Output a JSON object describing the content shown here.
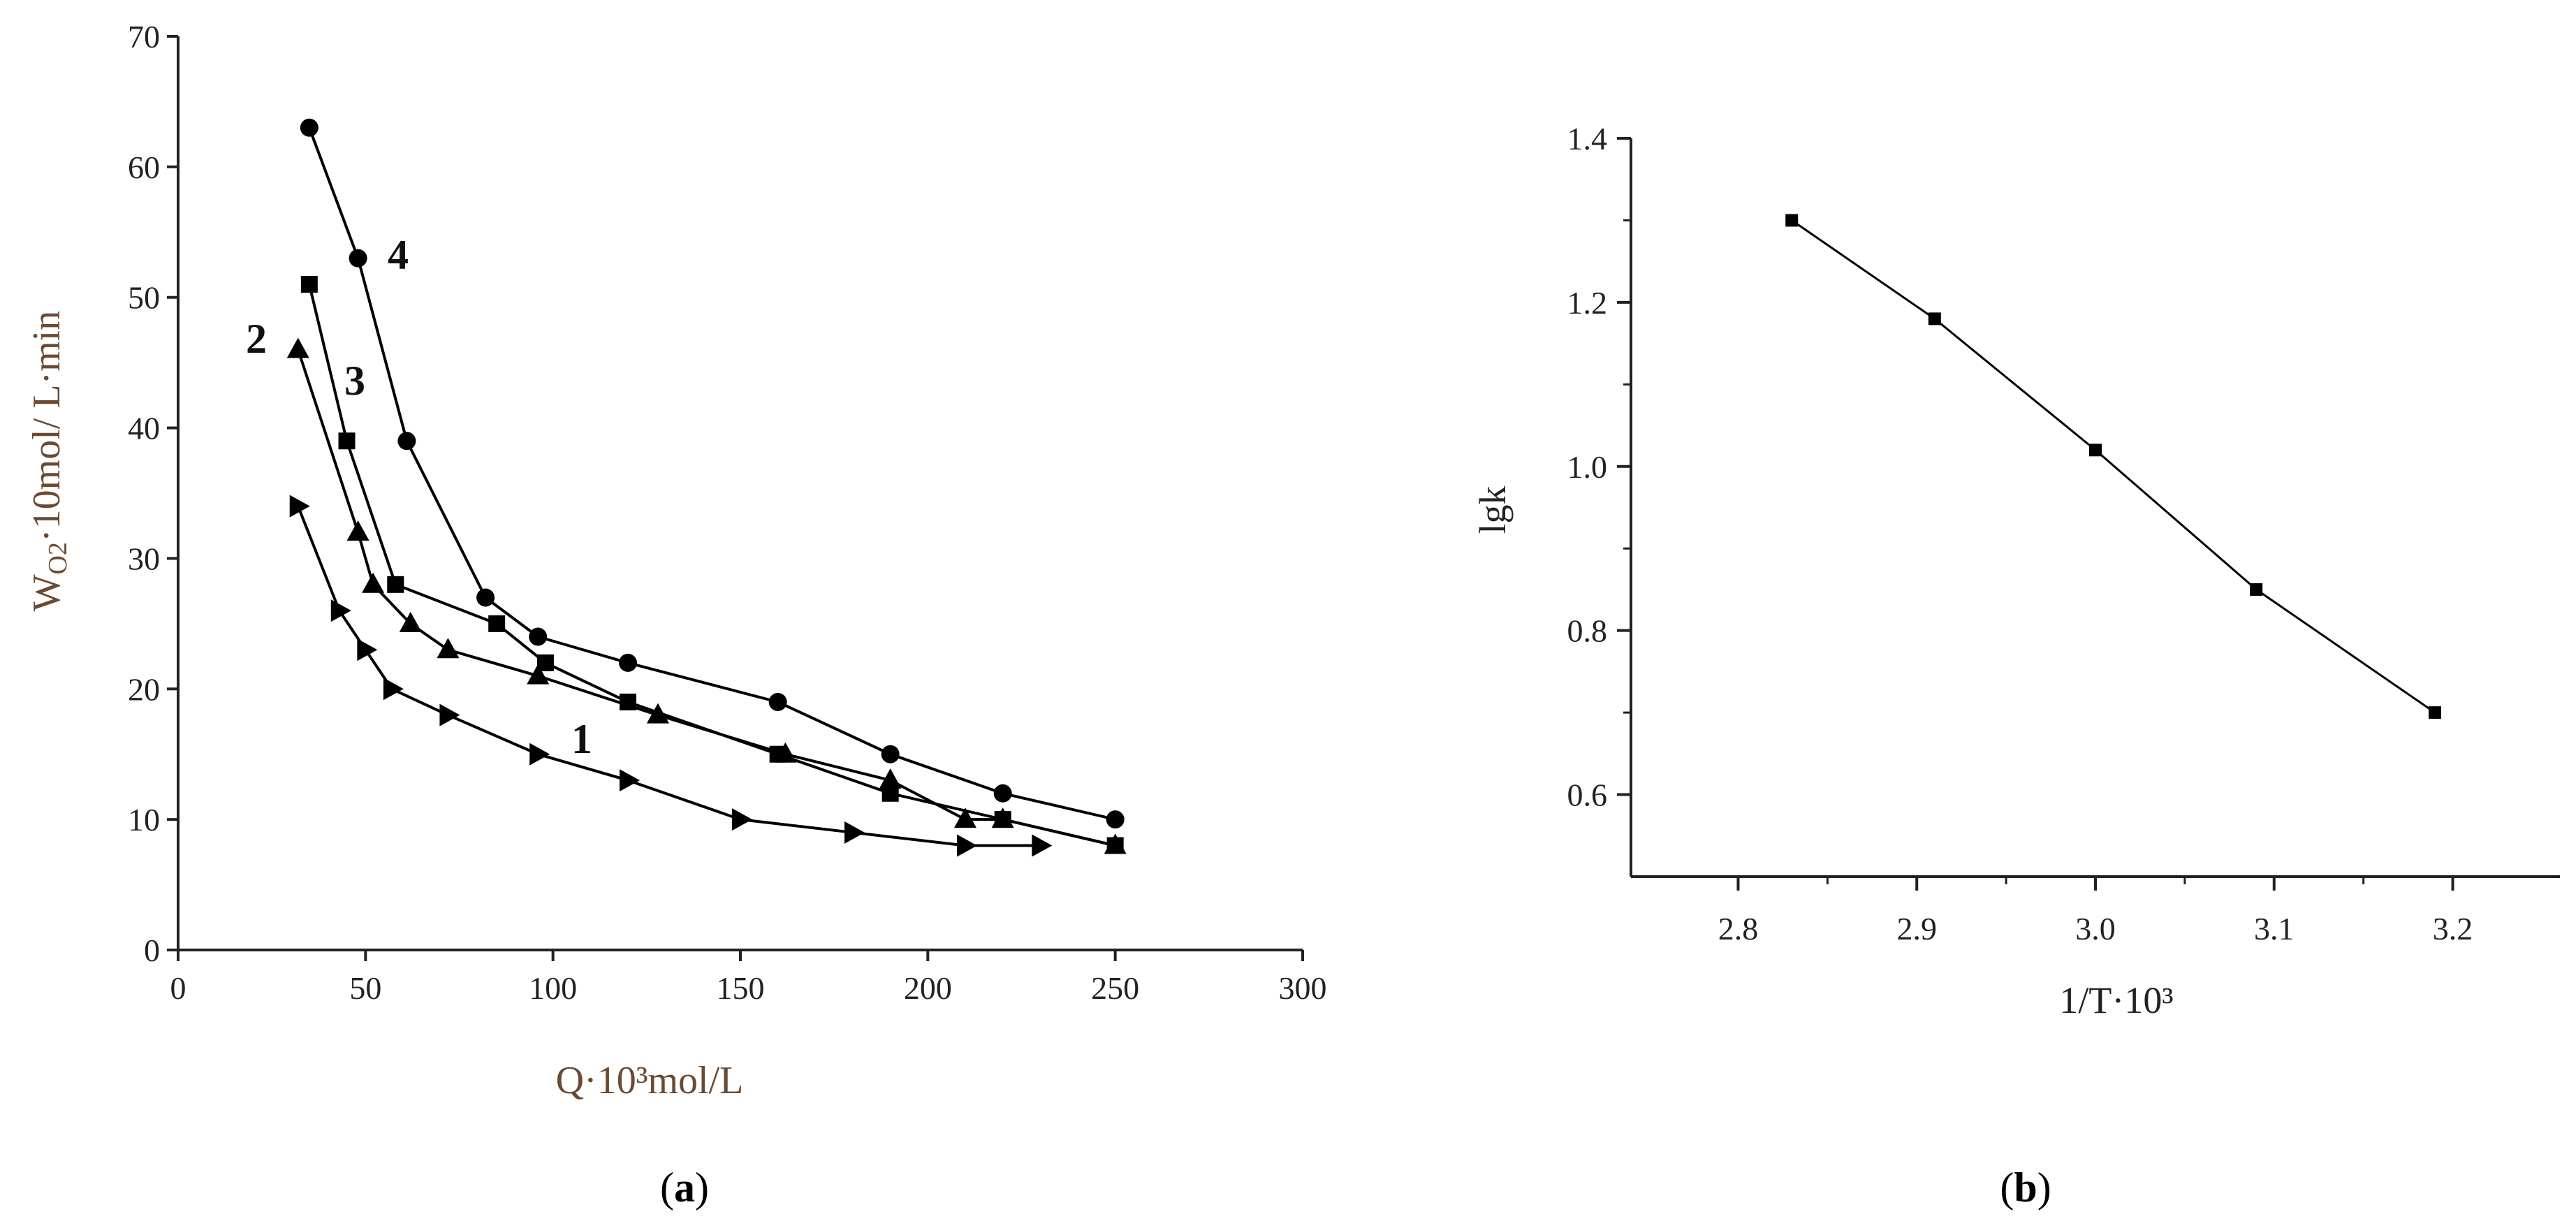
{
  "chart_data": [
    {
      "id": "a",
      "type": "line",
      "caption": {
        "open": "(",
        "letter": "a",
        "close": ")"
      },
      "xlabel": "Q·10³mol/L",
      "ylabel": "W",
      "ylabel_sub": "O2",
      "ylabel_rest": "·10mol/ L·min",
      "xlim": [
        0,
        300
      ],
      "ylim": [
        0,
        70
      ],
      "xticks": [
        0,
        50,
        100,
        150,
        200,
        250,
        300
      ],
      "yticks": [
        0,
        10,
        20,
        30,
        40,
        50,
        60,
        70
      ],
      "series": [
        {
          "name": "1",
          "marker": "triangle-right",
          "x": [
            32,
            43,
            50,
            57,
            72,
            96,
            120,
            150,
            180,
            210,
            230
          ],
          "y": [
            34,
            26,
            23,
            20,
            18,
            15,
            13,
            10,
            9,
            8,
            8
          ]
        },
        {
          "name": "2",
          "marker": "triangle-up",
          "x": [
            32,
            48,
            52,
            62,
            72,
            96,
            128,
            162,
            190,
            210,
            220,
            250
          ],
          "y": [
            46,
            32,
            28,
            25,
            23,
            21,
            18,
            15,
            13,
            10,
            10,
            8
          ]
        },
        {
          "name": "3",
          "marker": "square",
          "x": [
            35,
            45,
            58,
            85,
            98,
            120,
            160,
            190,
            220,
            250
          ],
          "y": [
            51,
            39,
            28,
            25,
            22,
            19,
            15,
            12,
            10,
            8
          ]
        },
        {
          "name": "4",
          "marker": "circle",
          "x": [
            35,
            48,
            61,
            82,
            96,
            120,
            160,
            190,
            220,
            250
          ],
          "y": [
            63,
            53,
            39,
            27,
            24,
            22,
            19,
            15,
            12,
            10
          ]
        }
      ]
    },
    {
      "id": "b",
      "type": "line",
      "caption": {
        "open": "(",
        "letter": "b",
        "close": ")"
      },
      "xlabel": "1/T·10³",
      "ylabel": "lgk",
      "xlim": [
        2.74,
        3.26
      ],
      "ylim": [
        0.5,
        1.4
      ],
      "xticks": [
        "2.8",
        "2.9",
        "3.0",
        "3.1",
        "3.2"
      ],
      "yticks": [
        "0.6",
        "0.8",
        "1.0",
        "1.2",
        "1.4"
      ],
      "series": [
        {
          "name": "lgk",
          "marker": "square",
          "x": [
            2.83,
            2.91,
            3.0,
            3.09,
            3.19
          ],
          "y": [
            1.3,
            1.18,
            1.02,
            0.85,
            0.7
          ]
        }
      ]
    }
  ]
}
